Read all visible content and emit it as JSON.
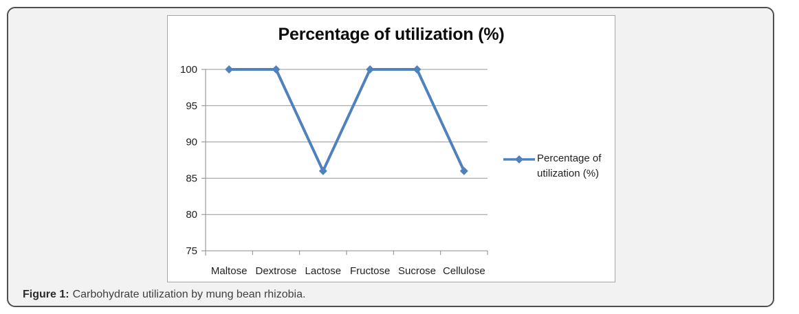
{
  "panel": {
    "background": "#F2F2F2",
    "border_color": "#4E4E4E"
  },
  "figure": {
    "caption_label": "Figure 1:",
    "caption_text": "Carbohydrate utilization by mung bean rhizobia."
  },
  "chart_data": {
    "type": "line",
    "title": "Percentage of utilization (%)",
    "categories": [
      "Maltose",
      "Dextrose",
      "Lactose",
      "Fructose",
      "Sucrose",
      "Cellulose"
    ],
    "series": [
      {
        "name": "Percentage of utilization (%)",
        "values": [
          100,
          100,
          86,
          100,
          100,
          86
        ],
        "color": "#4F81BD",
        "marker": "diamond"
      }
    ],
    "xlabel": "",
    "ylabel": "",
    "ylim": [
      75,
      100
    ],
    "yticks": [
      100,
      95,
      90,
      85,
      80,
      75
    ],
    "grid": true,
    "legend_position": "right",
    "legend_lines": [
      "Percentage of",
      "utilization (%)"
    ],
    "plot_styles": {
      "gridline_color": "#969696",
      "axis_color": "#8a8a8a",
      "chart_background": "#FFFFFF",
      "chart_border_color": "#A6A6A6"
    }
  }
}
